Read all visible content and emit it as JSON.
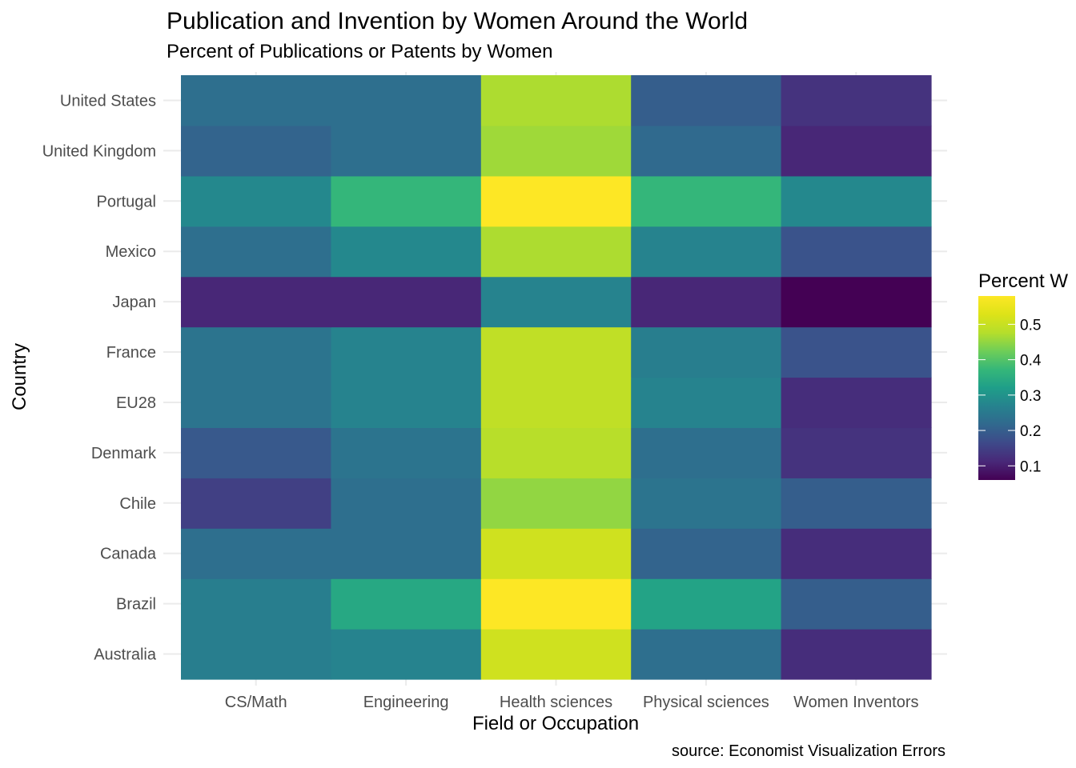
{
  "chart_data": {
    "type": "heatmap",
    "title": "Publication and Invention by Women Around the World",
    "subtitle": "Percent of Publications or Patents by Women",
    "xlabel": "Field or Occupation",
    "ylabel": "Country",
    "caption": "source: Economist Visualization Errors",
    "x_categories": [
      "CS/Math",
      "Engineering",
      "Health sciences",
      "Physical sciences",
      "Women Inventors"
    ],
    "y_categories": [
      "Australia",
      "Brazil",
      "Canada",
      "Chile",
      "Denmark",
      "EU28",
      "France",
      "Japan",
      "Mexico",
      "Portugal",
      "United Kingdom",
      "United States"
    ],
    "values": [
      [
        0.26,
        0.27,
        0.51,
        0.23,
        0.12
      ],
      [
        0.26,
        0.34,
        0.58,
        0.33,
        0.2
      ],
      [
        0.23,
        0.23,
        0.51,
        0.21,
        0.12
      ],
      [
        0.15,
        0.23,
        0.45,
        0.24,
        0.2
      ],
      [
        0.19,
        0.24,
        0.48,
        0.23,
        0.13
      ],
      [
        0.24,
        0.27,
        0.49,
        0.27,
        0.12
      ],
      [
        0.24,
        0.27,
        0.49,
        0.26,
        0.18
      ],
      [
        0.11,
        0.11,
        0.27,
        0.11,
        0.06
      ],
      [
        0.23,
        0.28,
        0.47,
        0.27,
        0.18
      ],
      [
        0.28,
        0.37,
        0.58,
        0.37,
        0.28
      ],
      [
        0.21,
        0.23,
        0.46,
        0.22,
        0.11
      ],
      [
        0.23,
        0.23,
        0.47,
        0.2,
        0.13
      ]
    ],
    "legend": {
      "title": "Percent W",
      "placement": "right",
      "min": 0.06,
      "max": 0.58,
      "ticks": [
        0.1,
        0.2,
        0.3,
        0.4,
        0.5
      ],
      "tick_labels": [
        "0.1",
        "0.2",
        "0.3",
        "0.4",
        "0.5"
      ]
    },
    "colormap": "viridis",
    "grid": true
  }
}
